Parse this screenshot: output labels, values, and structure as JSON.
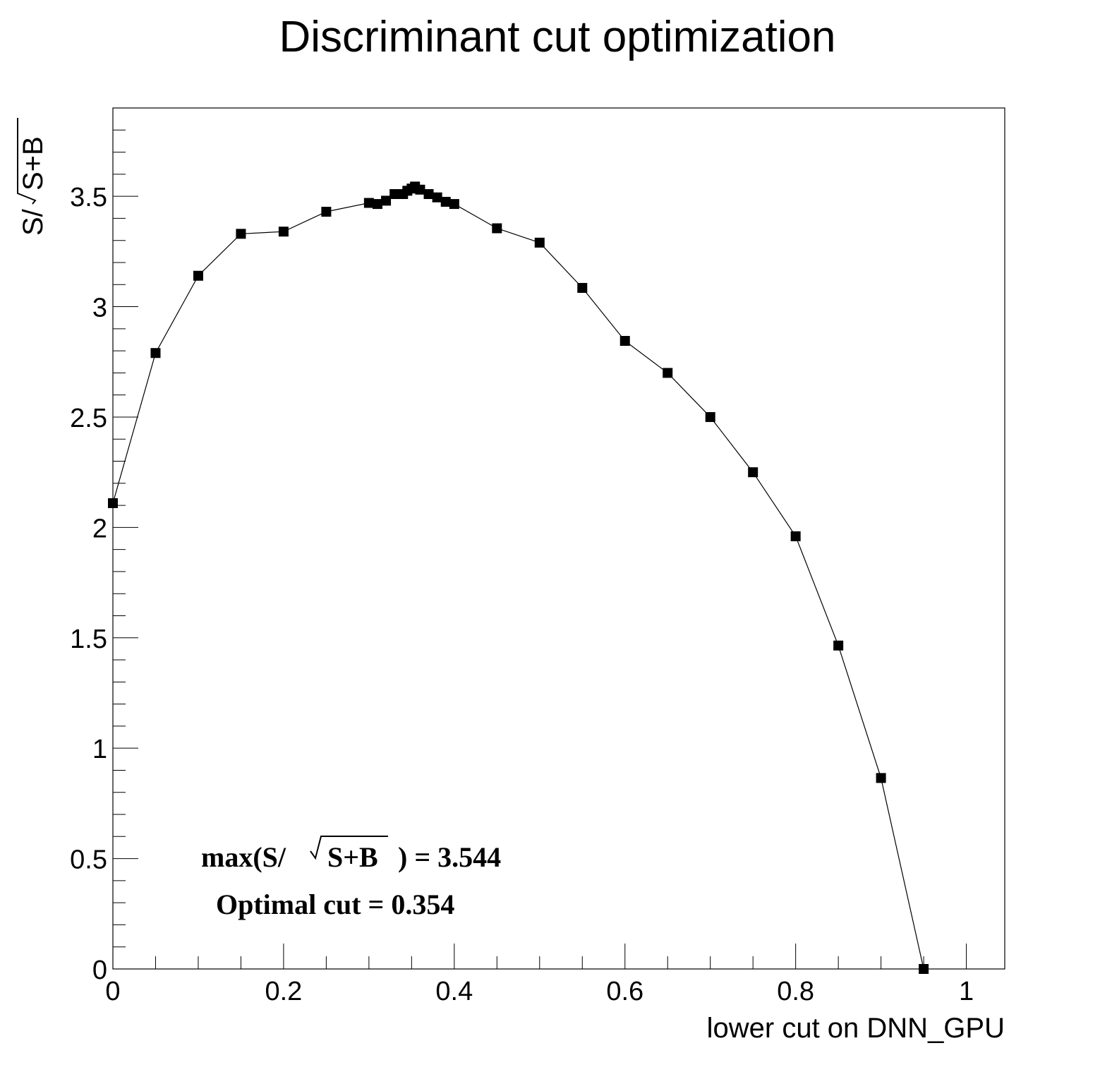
{
  "chart_data": {
    "type": "line",
    "title": "Discriminant cut optimization",
    "xlabel": "lower cut on DNN_GPU",
    "ylabel": {
      "prefix": "S/",
      "radicand": "S+B"
    },
    "xlim": [
      0,
      1.045
    ],
    "ylim": [
      0,
      3.9
    ],
    "x_ticks": [
      {
        "value": 0,
        "label": "0"
      },
      {
        "value": 0.2,
        "label": "0.2"
      },
      {
        "value": 0.4,
        "label": "0.4"
      },
      {
        "value": 0.6,
        "label": "0.6"
      },
      {
        "value": 0.8,
        "label": "0.8"
      },
      {
        "value": 1.0,
        "label": "1"
      }
    ],
    "y_ticks": [
      {
        "value": 0,
        "label": "0"
      },
      {
        "value": 0.5,
        "label": "0.5"
      },
      {
        "value": 1,
        "label": "1"
      },
      {
        "value": 1.5,
        "label": "1.5"
      },
      {
        "value": 2,
        "label": "2"
      },
      {
        "value": 2.5,
        "label": "2.5"
      },
      {
        "value": 3,
        "label": "3"
      },
      {
        "value": 3.5,
        "label": "3.5"
      }
    ],
    "grid": false,
    "legend": "none",
    "marker": "square",
    "color": "#000000",
    "series": [
      {
        "x": [
          0,
          0.05,
          0.1,
          0.15,
          0.2,
          0.25,
          0.3,
          0.31,
          0.32,
          0.33,
          0.34,
          0.345,
          0.35,
          0.354,
          0.36,
          0.37,
          0.38,
          0.39,
          0.4,
          0.45,
          0.5,
          0.55,
          0.6,
          0.65,
          0.7,
          0.75,
          0.8,
          0.85,
          0.9,
          0.95
        ],
        "y": [
          2.11,
          2.79,
          3.14,
          3.33,
          3.34,
          3.43,
          3.47,
          3.465,
          3.48,
          3.51,
          3.51,
          3.525,
          3.535,
          3.544,
          3.53,
          3.51,
          3.495,
          3.475,
          3.465,
          3.355,
          3.29,
          3.085,
          2.845,
          2.7,
          2.5,
          2.25,
          1.96,
          1.465,
          0.865,
          0.0
        ]
      }
    ],
    "annotations": {
      "max_line": {
        "prefix": "max(S/",
        "radicand": "S+B",
        "suffix": ") =  3.544"
      },
      "cut_line": "Optimal cut =  0.354"
    }
  }
}
